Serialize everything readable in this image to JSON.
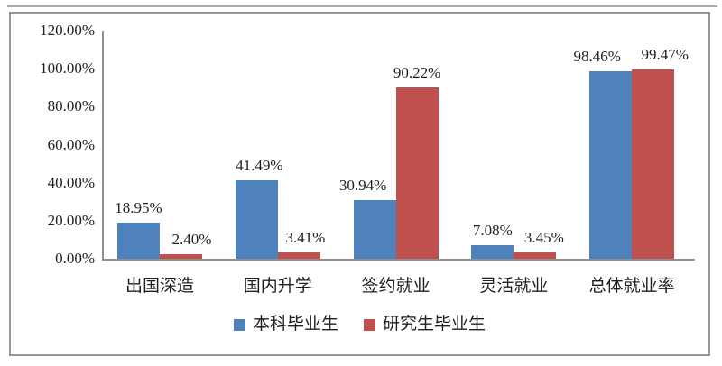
{
  "page": {
    "background": "#ffffff",
    "top_rule_color": "#ababab",
    "frame_border_color": "#979797",
    "text_color": "#1f1f1f"
  },
  "chart_data": {
    "type": "bar",
    "title": "",
    "categories": [
      "出国深造",
      "国内升学",
      "签约就业",
      "灵活就业",
      "总体就业率"
    ],
    "series": [
      {
        "name": "本科毕业生",
        "color": "#4f81bd",
        "values": [
          18.95,
          41.49,
          30.94,
          7.08,
          98.46
        ],
        "labels": [
          "18.95%",
          "41.49%",
          "30.94%",
          "7.08%",
          "98.46%"
        ]
      },
      {
        "name": "研究生毕业生",
        "color": "#c0504d",
        "values": [
          2.4,
          3.41,
          90.22,
          3.45,
          99.47
        ],
        "labels": [
          "2.40%",
          "3.41%",
          "90.22%",
          "3.45%",
          "99.47%"
        ]
      }
    ],
    "ylim": [
      0,
      120
    ],
    "ytick_values": [
      120,
      100,
      80,
      60,
      40,
      20,
      0
    ],
    "ytick_labels": [
      "120.00%",
      "100.00%",
      "80.00%",
      "60.00%",
      "40.00%",
      "20.00%",
      "0.00%"
    ],
    "xlabel": "",
    "ylabel": "",
    "grid": false,
    "legend_position": "bottom",
    "axis_color": "#8f8f8f"
  }
}
